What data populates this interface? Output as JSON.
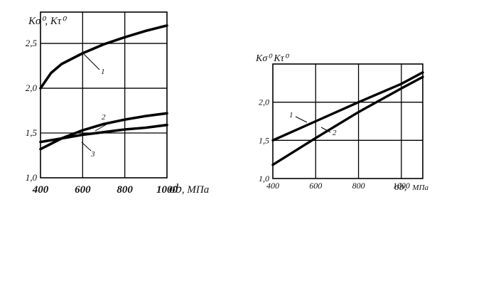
{
  "chart_data": [
    {
      "type": "line",
      "ylabel": "Kσ⁰, Kτ⁰",
      "xlabel_symbol": "σb",
      "xlabel_unit": ", МПа",
      "xlim": [
        400,
        1000
      ],
      "ylim": [
        1.0,
        2.85
      ],
      "x_ticks": [
        "400",
        "600",
        "800",
        "1000"
      ],
      "y_ticks": [
        "1,0",
        "1,5",
        "2,0",
        "2,5"
      ],
      "grid": true,
      "series": [
        {
          "name": "1",
          "x": [
            400,
            450,
            500,
            600,
            700,
            800,
            900,
            1000
          ],
          "y": [
            2.0,
            2.17,
            2.27,
            2.39,
            2.49,
            2.57,
            2.64,
            2.7
          ]
        },
        {
          "name": "2",
          "x": [
            400,
            500,
            600,
            700,
            800,
            900,
            1000
          ],
          "y": [
            1.32,
            1.44,
            1.53,
            1.6,
            1.65,
            1.69,
            1.72
          ]
        },
        {
          "name": "3",
          "x": [
            400,
            500,
            600,
            700,
            800,
            900,
            1000
          ],
          "y": [
            1.4,
            1.44,
            1.48,
            1.51,
            1.54,
            1.56,
            1.59
          ]
        }
      ]
    },
    {
      "type": "line",
      "ylabel": "Kσ⁰ Kτ⁰",
      "xlabel_symbol": "σb,",
      "xlabel_unit": "МПа",
      "xlim": [
        400,
        1100
      ],
      "ylim": [
        1.0,
        2.5
      ],
      "x_ticks": [
        "400",
        "600",
        "800",
        "1000"
      ],
      "y_ticks": [
        "1,0",
        "1,5",
        "2,0"
      ],
      "grid": true,
      "series": [
        {
          "name": "1",
          "x": [
            400,
            600,
            800,
            1000,
            1100
          ],
          "y": [
            1.5,
            1.75,
            2.0,
            2.24,
            2.39
          ]
        },
        {
          "name": "2",
          "x": [
            400,
            600,
            800,
            1000,
            1100
          ],
          "y": [
            1.18,
            1.53,
            1.87,
            2.18,
            2.33
          ]
        }
      ]
    }
  ]
}
